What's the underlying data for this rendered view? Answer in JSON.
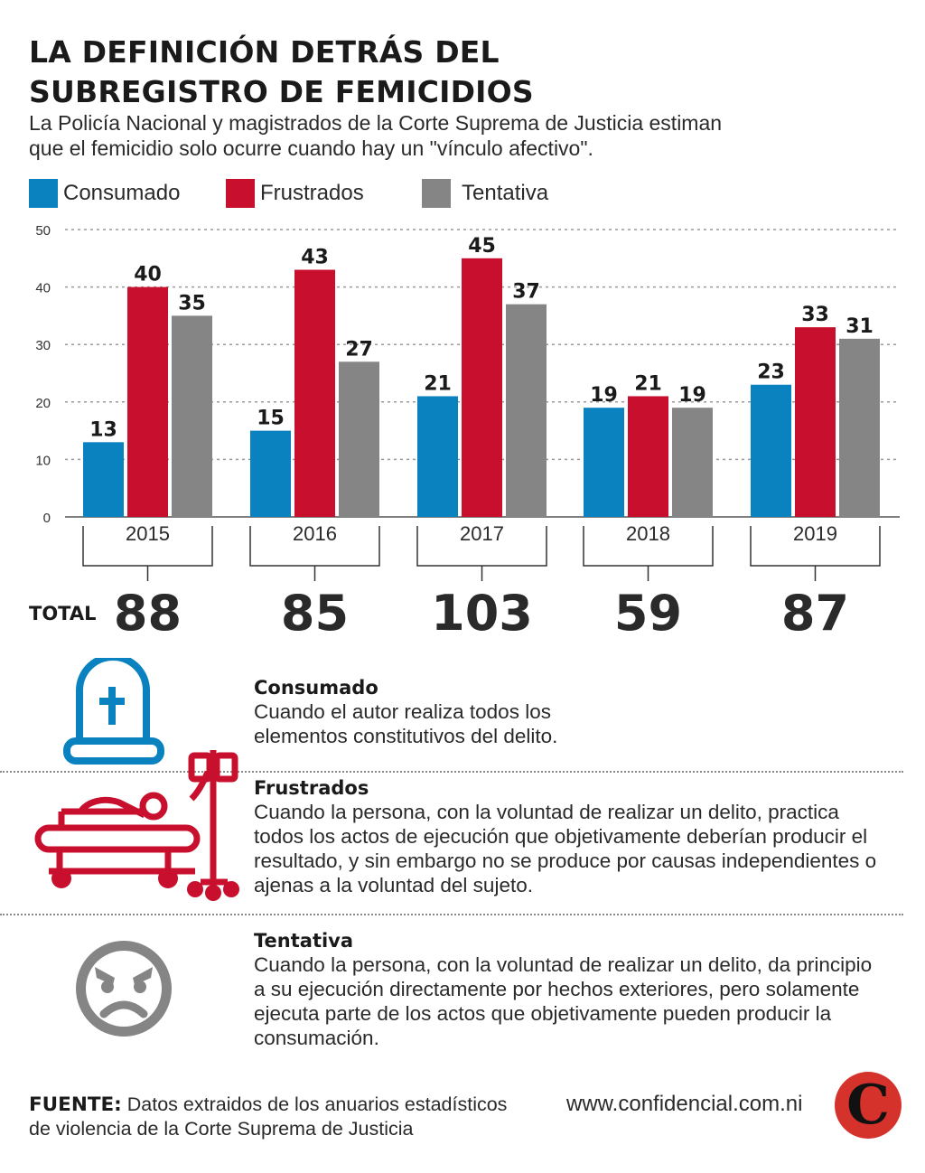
{
  "header": {
    "title_line1": "LA DEFINICIÓN DETRÁS DEL",
    "title_line2": "SUBREGISTRO DE FEMICIDIOS",
    "subtitle_line1": "La Policía Nacional y magistrados de la Corte Suprema de Justicia estiman",
    "subtitle_line2": "que el femicidio solo ocurre cuando hay un \"vínculo afectivo\"."
  },
  "chart_data": {
    "type": "bar",
    "categories": [
      "2015",
      "2016",
      "2017",
      "2018",
      "2019"
    ],
    "series": [
      {
        "name": "Consumado",
        "color": "#0b82c0",
        "values": [
          13,
          15,
          21,
          19,
          23
        ]
      },
      {
        "name": "Frustrados",
        "color": "#c8102e",
        "values": [
          40,
          43,
          45,
          21,
          33
        ]
      },
      {
        "name": "Tentativa",
        "color": "#858585",
        "values": [
          35,
          27,
          37,
          19,
          31
        ]
      }
    ],
    "yticks": [
      0,
      10,
      20,
      30,
      40,
      50
    ],
    "ylim": [
      0,
      50
    ],
    "grid": true,
    "legend_position": "top-left",
    "total_label": "TOTAL",
    "totals": [
      88,
      85,
      103,
      59,
      87
    ]
  },
  "definitions": [
    {
      "title": "Consumado",
      "line1": "Cuando el autor realiza todos los",
      "line2": "elementos constitutivos del delito.",
      "icon": "tombstone-icon"
    },
    {
      "title": "Frustrados",
      "line1": "Cuando la persona, con la voluntad de realizar un delito, practica",
      "line2": "todos los actos de ejecución que objetivamente deberían producir el",
      "line3": "resultado, y sin embargo no se produce por causas independientes o",
      "line4": "ajenas a la voluntad del sujeto.",
      "icon": "hospital-bed-icon"
    },
    {
      "title": "Tentativa",
      "line1": "Cuando la persona, con la voluntad de realizar un delito, da principio",
      "line2": "a su ejecución directamente por hechos exteriores, pero solamente",
      "line3": "ejecuta parte de los actos que objetivamente pueden producir la",
      "line4": "consumación.",
      "icon": "angry-face-icon"
    }
  ],
  "footer": {
    "source_label": "FUENTE:",
    "source_line1": "Datos extraidos de los anuarios estadísticos",
    "source_line2": "de violencia de la Corte Suprema de Justicia",
    "site": "www.confidencial.com.ni",
    "logo_letter": "C"
  }
}
